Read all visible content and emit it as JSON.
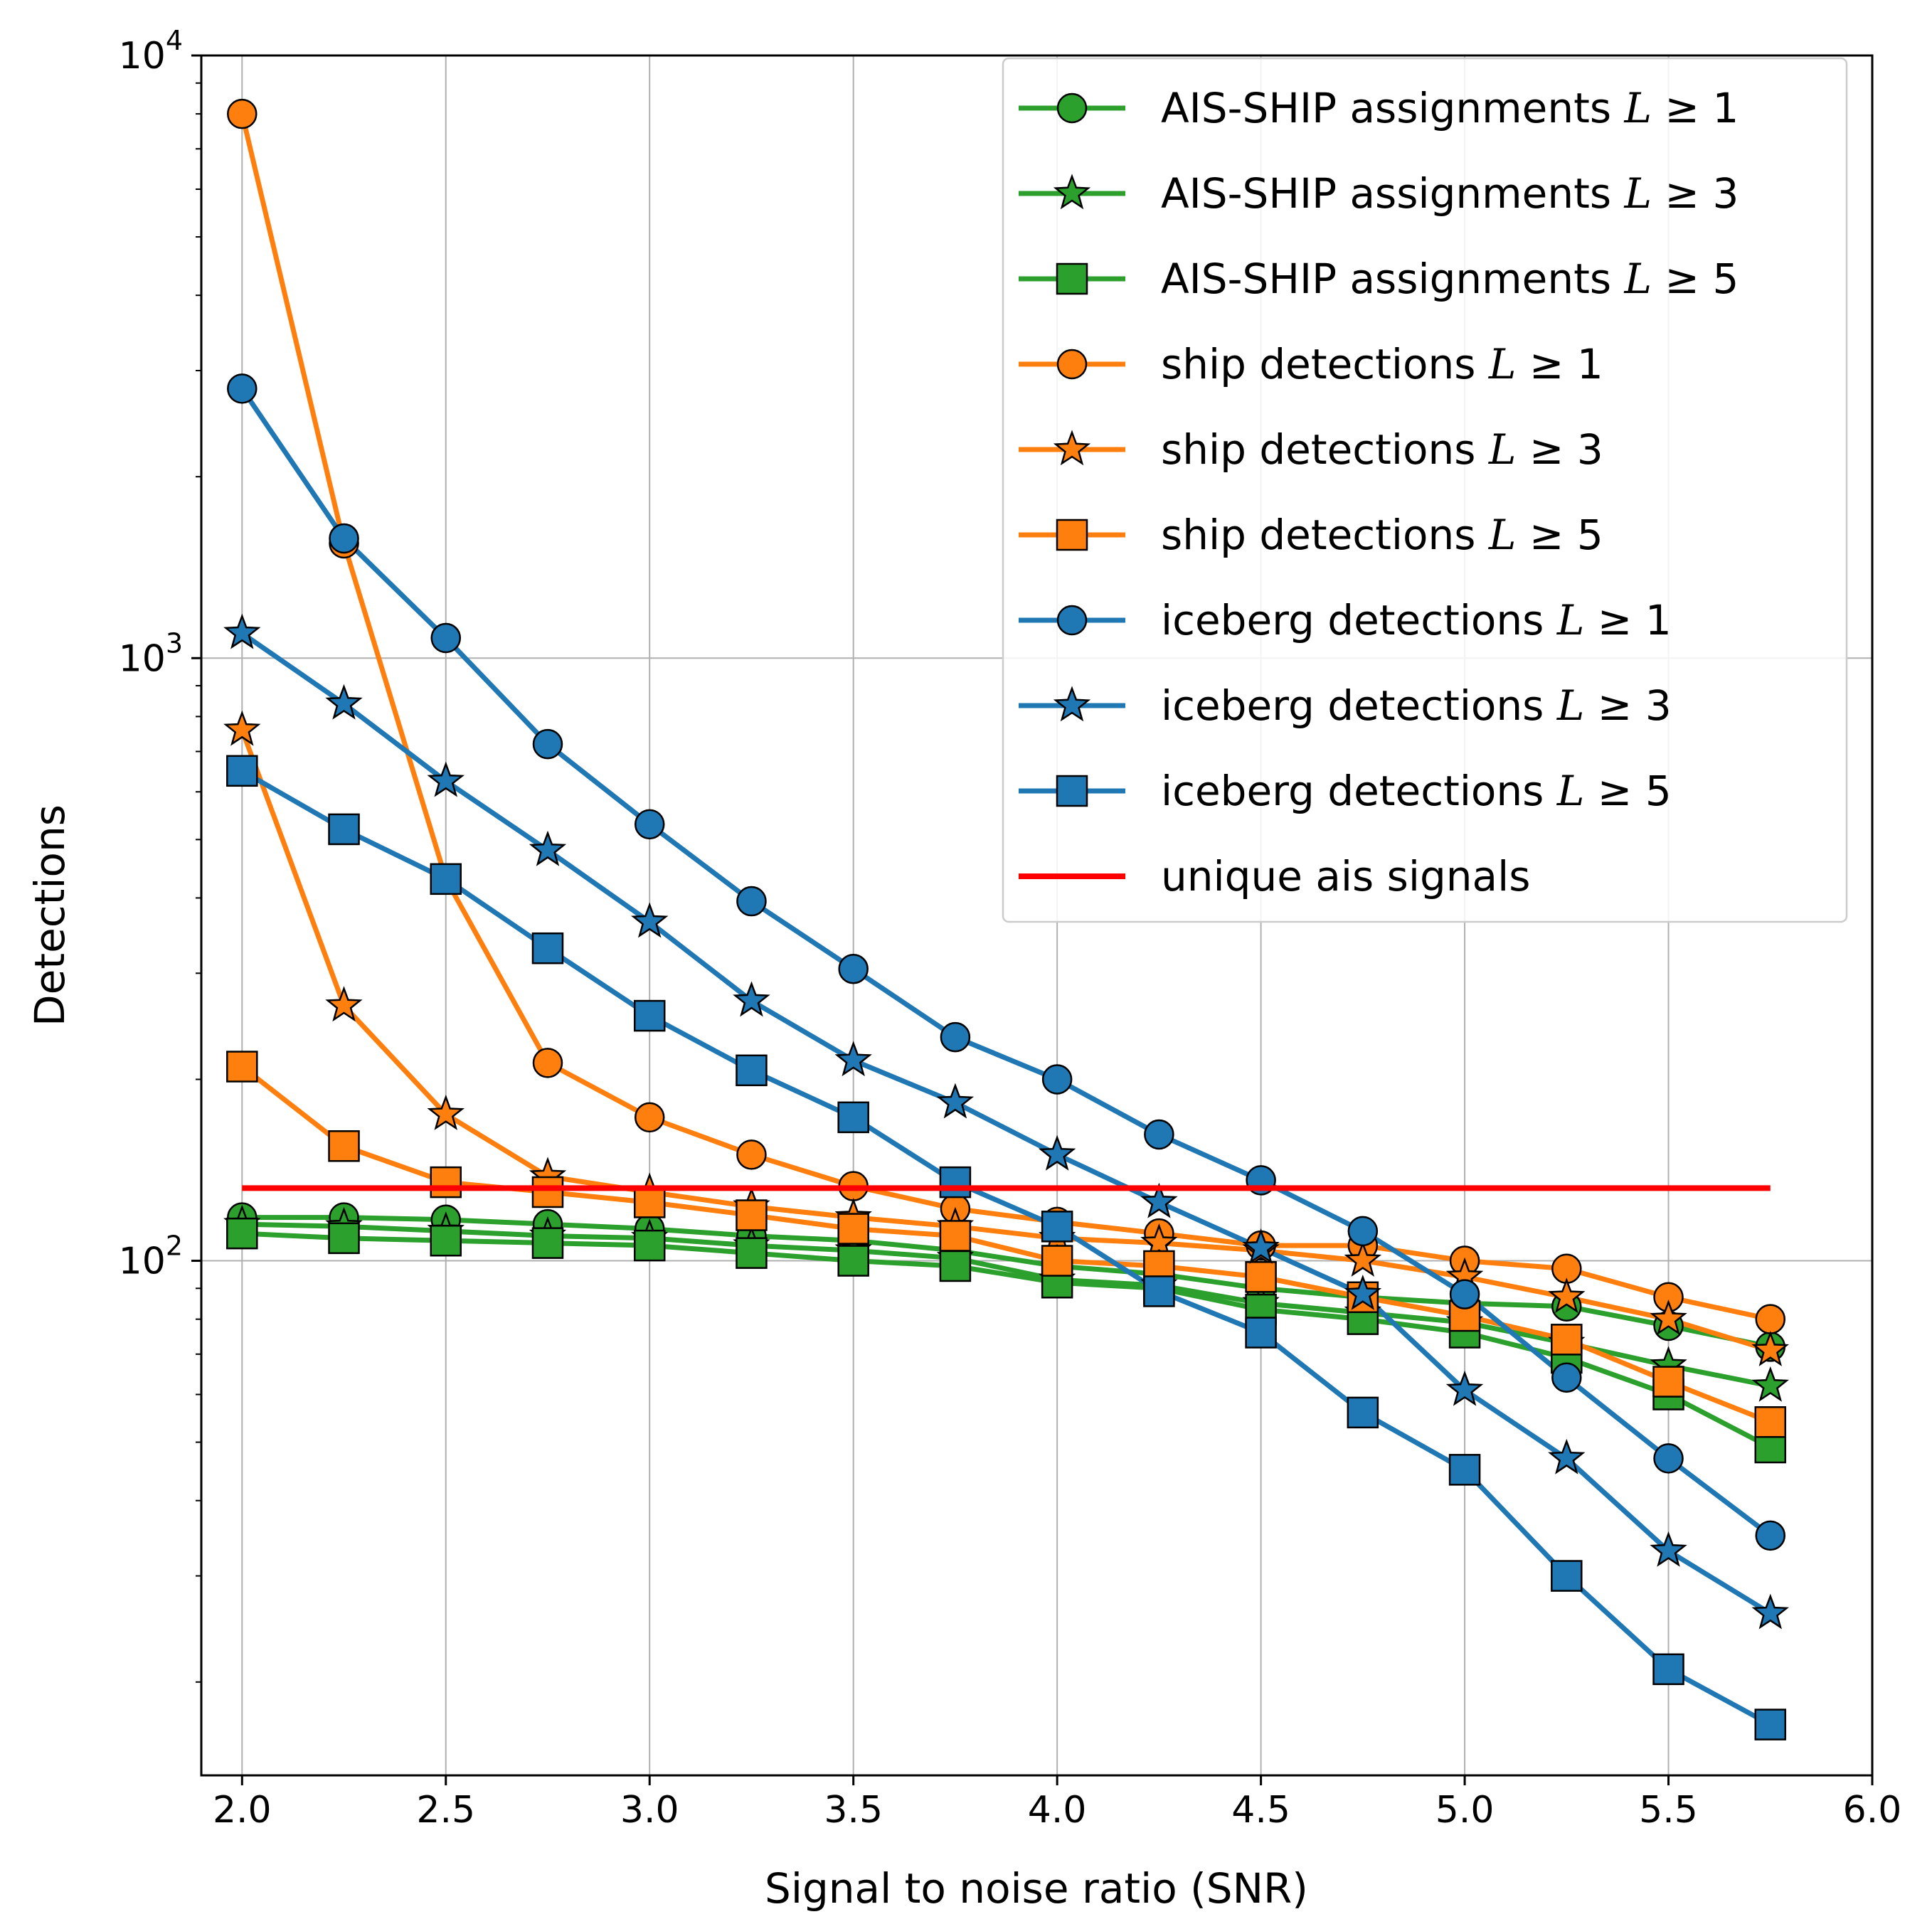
{
  "chart_data": {
    "type": "line",
    "xlabel": "Signal to noise ratio (SNR)",
    "ylabel": "Detections",
    "xlim": [
      1.9,
      6.0
    ],
    "ylim": [
      14,
      10000
    ],
    "yscale": "log",
    "grid": true,
    "legend_position": "top-right",
    "x_ticks": [
      {
        "value": 2.0,
        "label": "2.0"
      },
      {
        "value": 2.5,
        "label": "2.5"
      },
      {
        "value": 3.0,
        "label": "3.0"
      },
      {
        "value": 3.5,
        "label": "3.5"
      },
      {
        "value": 4.0,
        "label": "4.0"
      },
      {
        "value": 4.5,
        "label": "4.5"
      },
      {
        "value": 5.0,
        "label": "5.0"
      },
      {
        "value": 5.5,
        "label": "5.5"
      },
      {
        "value": 6.0,
        "label": "6.0"
      }
    ],
    "y_ticks": [
      {
        "value": 100,
        "base": "10",
        "exp": "2"
      },
      {
        "value": 1000,
        "base": "10",
        "exp": "3"
      },
      {
        "value": 10000,
        "base": "10",
        "exp": "4"
      }
    ],
    "x": [
      2.0,
      2.25,
      2.5,
      2.75,
      3.0,
      3.25,
      3.5,
      3.75,
      4.0,
      4.25,
      4.5,
      4.75,
      5.0,
      5.25,
      5.5,
      5.75
    ],
    "series": [
      {
        "name": "AIS-SHIP assignments",
        "L": "1",
        "color": "#2ca02c",
        "marker": "circle",
        "values": [
          118,
          118,
          117,
          115,
          113,
          110,
          108,
          104,
          98,
          95,
          90,
          87,
          85,
          84,
          78,
          72
        ]
      },
      {
        "name": "AIS-SHIP assignments",
        "L": "3",
        "color": "#2ca02c",
        "marker": "star",
        "values": [
          115,
          114,
          112,
          110,
          109,
          106,
          104,
          101,
          93,
          91,
          85,
          82,
          79,
          73,
          67,
          62
        ]
      },
      {
        "name": "AIS-SHIP assignments",
        "L": "5",
        "color": "#2ca02c",
        "marker": "square",
        "values": [
          111,
          109,
          108,
          107,
          106,
          103,
          100,
          98,
          92,
          90,
          83,
          80,
          76,
          69,
          60,
          49
        ]
      },
      {
        "name": "ship detections",
        "L": "1",
        "color": "#ff7f0e",
        "marker": "circle",
        "values": [
          8000,
          1550,
          430,
          213,
          173,
          150,
          133,
          122,
          116,
          111,
          106,
          106,
          100,
          97,
          87,
          80
        ]
      },
      {
        "name": "ship detections",
        "L": "3",
        "color": "#ff7f0e",
        "marker": "star",
        "values": [
          760,
          265,
          175,
          138,
          130,
          123,
          118,
          114,
          109,
          107,
          104,
          100,
          94,
          87,
          80,
          71
        ]
      },
      {
        "name": "ship detections",
        "L": "5",
        "color": "#ff7f0e",
        "marker": "square",
        "values": [
          210,
          155,
          135,
          130,
          125,
          119,
          113,
          110,
          100,
          98,
          94,
          87,
          81,
          74,
          63,
          54
        ]
      },
      {
        "name": "iceberg detections",
        "L": "1",
        "color": "#1f77b4",
        "marker": "circle",
        "values": [
          2800,
          1580,
          1080,
          720,
          530,
          395,
          305,
          235,
          200,
          162,
          136,
          112,
          88,
          64,
          47,
          35
        ]
      },
      {
        "name": "iceberg detections",
        "L": "3",
        "color": "#1f77b4",
        "marker": "star",
        "values": [
          1100,
          840,
          625,
          480,
          365,
          270,
          215,
          183,
          150,
          125,
          105,
          88,
          61,
          47,
          33,
          26
        ]
      },
      {
        "name": "iceberg detections",
        "L": "5",
        "color": "#1f77b4",
        "marker": "square",
        "values": [
          650,
          520,
          430,
          330,
          255,
          207,
          173,
          135,
          114,
          89,
          76,
          56,
          45,
          30,
          21,
          17
        ]
      }
    ],
    "reference_line": {
      "name": "unique ais signals",
      "color": "#ff0000",
      "value": 132,
      "x_start": 2.0,
      "x_end": 5.75
    }
  }
}
